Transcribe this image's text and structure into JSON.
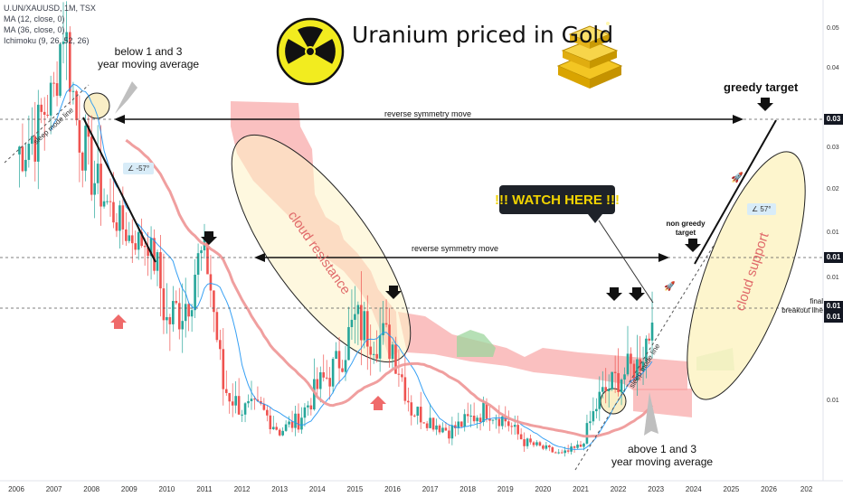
{
  "legend": {
    "symbol": "U.UN/XAUUSD, 1M, TSX",
    "ma1": "MA (12, close, 0)",
    "ma2": "MA (36, close, 0)",
    "ichimoku": "Ichimoku (9, 26, 52, 26)"
  },
  "title": "Uranium priced in Gold",
  "annotations": {
    "below_ma_line1": "below 1 and 3",
    "below_ma_line2": "year moving average",
    "sleep_mode_1": "sleep mode line",
    "sleep_mode_2": "sleep mode line",
    "reverse_symmetry_top": "reverse symmetry move",
    "reverse_symmetry_mid": "reverse symmetry move",
    "greedy_target": "greedy target",
    "non_greedy_line1": "non greedy",
    "non_greedy_line2": "target",
    "watch_here": "!!! WATCH HERE !!!",
    "cloud_resistance": "cloud resistance",
    "cloud_support": "cloud support",
    "final_line1": "final",
    "final_line2": "breakout line",
    "above_ma_line1": "above 1 and 3",
    "above_ma_line2": "year moving average",
    "angle_down": "-57°",
    "angle_up": "57°"
  },
  "price_axis": {
    "labels": [
      "0.05",
      "0.04",
      "0.03",
      "0.02",
      "0.01",
      "0.01",
      "0.01"
    ],
    "badges": [
      "0.03",
      "0.01",
      "0.01",
      "0.01"
    ]
  },
  "chart_data": {
    "type": "line",
    "xlabel": "",
    "ylabel": "",
    "x_ticks": [
      "2006",
      "2007",
      "2008",
      "2009",
      "2010",
      "2011",
      "2012",
      "2013",
      "2014",
      "2015",
      "2016",
      "2017",
      "2018",
      "2019",
      "2020",
      "2021",
      "2022",
      "2023",
      "2024",
      "2025",
      "2026",
      "202"
    ],
    "ylim": [
      0.0,
      0.055
    ],
    "series": [
      {
        "name": "",
        "values_semiannual": [
          {
            "x": 2006.0,
            "y": 0.025
          },
          {
            "x": 2006.5,
            "y": 0.028
          },
          {
            "x": 2007.0,
            "y": 0.036
          },
          {
            "x": 2007.25,
            "y": 0.052
          },
          {
            "x": 2007.6,
            "y": 0.03
          },
          {
            "x": 2008.0,
            "y": 0.022
          },
          {
            "x": 2008.5,
            "y": 0.017
          },
          {
            "x": 2009.0,
            "y": 0.013
          },
          {
            "x": 2009.5,
            "y": 0.012
          },
          {
            "x": 2010.0,
            "y": 0.007
          },
          {
            "x": 2010.5,
            "y": 0.008
          },
          {
            "x": 2011.0,
            "y": 0.011
          },
          {
            "x": 2011.5,
            "y": 0.004
          },
          {
            "x": 2012.0,
            "y": 0.003
          },
          {
            "x": 2012.5,
            "y": 0.003
          },
          {
            "x": 2013.0,
            "y": 0.002
          },
          {
            "x": 2013.5,
            "y": 0.0025
          },
          {
            "x": 2014.0,
            "y": 0.004
          },
          {
            "x": 2014.5,
            "y": 0.005
          },
          {
            "x": 2015.0,
            "y": 0.007
          },
          {
            "x": 2015.5,
            "y": 0.0065
          },
          {
            "x": 2016.0,
            "y": 0.006
          },
          {
            "x": 2016.5,
            "y": 0.003
          },
          {
            "x": 2017.0,
            "y": 0.0025
          },
          {
            "x": 2017.5,
            "y": 0.002
          },
          {
            "x": 2018.0,
            "y": 0.0025
          },
          {
            "x": 2018.5,
            "y": 0.003
          },
          {
            "x": 2019.0,
            "y": 0.0025
          },
          {
            "x": 2019.5,
            "y": 0.0015
          },
          {
            "x": 2020.0,
            "y": 0.0012
          },
          {
            "x": 2020.5,
            "y": 0.0009
          },
          {
            "x": 2021.0,
            "y": 0.0013
          },
          {
            "x": 2021.5,
            "y": 0.0035
          },
          {
            "x": 2022.0,
            "y": 0.0045
          },
          {
            "x": 2022.5,
            "y": 0.005
          },
          {
            "x": 2022.9,
            "y": 0.007
          }
        ]
      }
    ],
    "levels": {
      "top_dashed": 0.03,
      "mid_dashed": 0.01,
      "breakout_dashed": 0.01
    },
    "grid": false,
    "legend_placement": "top-left"
  },
  "colors": {
    "bull": "#26a69a",
    "bear": "#ef5350",
    "ma12": "#2196f3",
    "ma36": "#ef9a9a",
    "cloud_bear": "#f8a5a5",
    "cloud_bull": "#9ed69e",
    "ellipse_fill": "#fdf3c4"
  }
}
